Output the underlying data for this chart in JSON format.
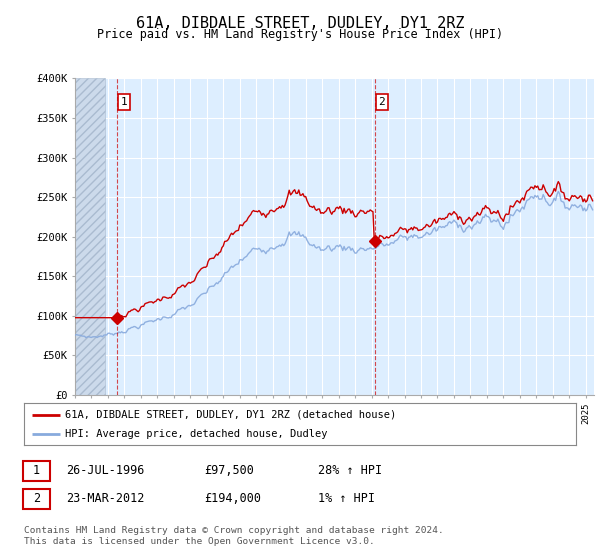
{
  "title": "61A, DIBDALE STREET, DUDLEY, DY1 2RZ",
  "subtitle": "Price paid vs. HM Land Registry's House Price Index (HPI)",
  "background_color": "#ffffff",
  "plot_bg_color": "#ddeeff",
  "hatch_region_end": 1995.83,
  "grid_color": "#ffffff",
  "line1_color": "#cc0000",
  "line2_color": "#88aadd",
  "sale1_x": 1996.57,
  "sale1_y": 97500,
  "sale2_x": 2012.22,
  "sale2_y": 194000,
  "legend_label1": "61A, DIBDALE STREET, DUDLEY, DY1 2RZ (detached house)",
  "legend_label2": "HPI: Average price, detached house, Dudley",
  "table_row1": [
    "1",
    "26-JUL-1996",
    "£97,500",
    "28% ↑ HPI"
  ],
  "table_row2": [
    "2",
    "23-MAR-2012",
    "£194,000",
    "1% ↑ HPI"
  ],
  "footer": "Contains HM Land Registry data © Crown copyright and database right 2024.\nThis data is licensed under the Open Government Licence v3.0.",
  "ylim": [
    0,
    400000
  ],
  "yticks": [
    0,
    50000,
    100000,
    150000,
    200000,
    250000,
    300000,
    350000,
    400000
  ],
  "ytick_labels": [
    "£0",
    "£50K",
    "£100K",
    "£150K",
    "£200K",
    "£250K",
    "£300K",
    "£350K",
    "£400K"
  ],
  "xlim_start": 1994.0,
  "xlim_end": 2025.5
}
